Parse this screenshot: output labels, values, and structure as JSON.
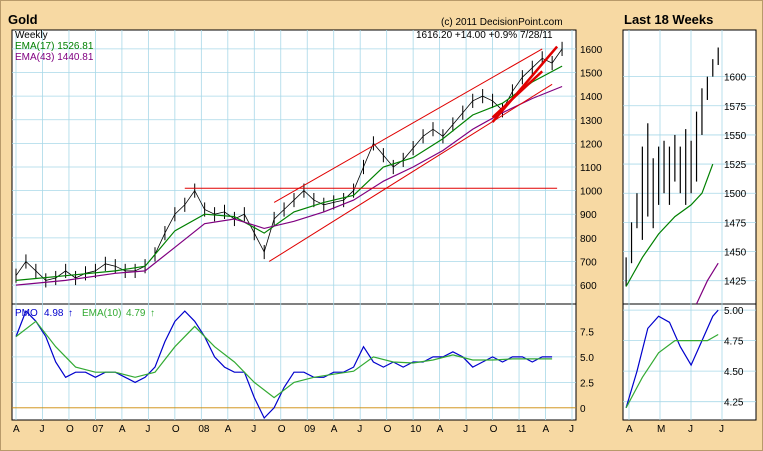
{
  "title_main": "Gold",
  "title_side": "Last 18 Weeks",
  "copyright": "(c) 2011 DecisionPoint.com",
  "quote": "1616.20  +14.00  +0.9%  7/28/11",
  "legend": {
    "period": "Weekly",
    "ema17": "EMA(17) 1526.81",
    "ema43": "EMA(43) 1440.81",
    "pmo_label": "PMO",
    "pmo_value": "4.98",
    "ema10_label": "EMA(10)",
    "ema10_value": "4.79"
  },
  "colors": {
    "price": "#000000",
    "ema17": "#008000",
    "ema43": "#800080",
    "pmo": "#0000cc",
    "pmo_ema": "#33aa33",
    "trend": "#e00000",
    "zero_line": "#cc8800",
    "grid": "#a8d8e8"
  },
  "chart_data": [
    {
      "type": "line",
      "name": "price-panel",
      "ylim": [
        520,
        1680
      ],
      "yticks": [
        600,
        700,
        800,
        900,
        1000,
        1100,
        1200,
        1300,
        1400,
        1500,
        1600
      ],
      "xticks": [
        "A",
        "J",
        "O",
        "07",
        "A",
        "J",
        "O",
        "08",
        "A",
        "J",
        "O",
        "09",
        "A",
        "J",
        "O",
        "10",
        "A",
        "J",
        "O",
        "11",
        "A",
        "J"
      ],
      "price_points": [
        [
          0,
          640
        ],
        [
          1,
          700
        ],
        [
          2,
          660
        ],
        [
          3,
          620
        ],
        [
          4,
          630
        ],
        [
          5,
          660
        ],
        [
          6,
          630
        ],
        [
          7,
          650
        ],
        [
          8,
          660
        ],
        [
          9,
          690
        ],
        [
          10,
          680
        ],
        [
          11,
          660
        ],
        [
          12,
          660
        ],
        [
          13,
          680
        ],
        [
          14,
          730
        ],
        [
          15,
          820
        ],
        [
          16,
          900
        ],
        [
          17,
          940
        ],
        [
          18,
          1000
        ],
        [
          19,
          920
        ],
        [
          20,
          900
        ],
        [
          21,
          910
        ],
        [
          22,
          880
        ],
        [
          23,
          900
        ],
        [
          24,
          820
        ],
        [
          25,
          740
        ],
        [
          26,
          880
        ],
        [
          27,
          920
        ],
        [
          28,
          960
        ],
        [
          29,
          1000
        ],
        [
          30,
          960
        ],
        [
          31,
          940
        ],
        [
          32,
          950
        ],
        [
          33,
          960
        ],
        [
          34,
          1000
        ],
        [
          35,
          1100
        ],
        [
          36,
          1200
        ],
        [
          37,
          1150
        ],
        [
          38,
          1100
        ],
        [
          39,
          1130
        ],
        [
          40,
          1180
        ],
        [
          41,
          1230
        ],
        [
          42,
          1260
        ],
        [
          43,
          1230
        ],
        [
          44,
          1280
        ],
        [
          45,
          1330
        ],
        [
          46,
          1380
        ],
        [
          47,
          1400
        ],
        [
          48,
          1380
        ],
        [
          49,
          1340
        ],
        [
          50,
          1420
        ],
        [
          51,
          1480
        ],
        [
          52,
          1520
        ],
        [
          53,
          1560
        ],
        [
          54,
          1540
        ],
        [
          55,
          1600
        ]
      ],
      "ema17_points": [
        [
          0,
          620
        ],
        [
          5,
          640
        ],
        [
          10,
          660
        ],
        [
          13,
          680
        ],
        [
          16,
          830
        ],
        [
          19,
          900
        ],
        [
          22,
          890
        ],
        [
          25,
          820
        ],
        [
          28,
          910
        ],
        [
          31,
          950
        ],
        [
          34,
          980
        ],
        [
          37,
          1100
        ],
        [
          40,
          1140
        ],
        [
          43,
          1220
        ],
        [
          46,
          1320
        ],
        [
          49,
          1370
        ],
        [
          52,
          1460
        ],
        [
          55,
          1527
        ]
      ],
      "ema43_points": [
        [
          0,
          600
        ],
        [
          5,
          620
        ],
        [
          10,
          650
        ],
        [
          13,
          660
        ],
        [
          16,
          760
        ],
        [
          19,
          860
        ],
        [
          22,
          880
        ],
        [
          25,
          840
        ],
        [
          28,
          870
        ],
        [
          31,
          910
        ],
        [
          34,
          960
        ],
        [
          37,
          1040
        ],
        [
          40,
          1100
        ],
        [
          43,
          1170
        ],
        [
          46,
          1260
        ],
        [
          49,
          1330
        ],
        [
          52,
          1390
        ],
        [
          55,
          1441
        ]
      ],
      "trendlines": [
        {
          "from": [
            17,
            1010
          ],
          "to": [
            54.5,
            1010
          ]
        },
        {
          "from": [
            26,
            950
          ],
          "to": [
            53,
            1600
          ]
        },
        {
          "from": [
            25.5,
            700
          ],
          "to": [
            54,
            1450
          ]
        },
        {
          "from": [
            48,
            1290
          ],
          "to": [
            54.5,
            1610
          ]
        },
        {
          "from": [
            48,
            1310
          ],
          "to": [
            53,
            1505
          ]
        }
      ]
    },
    {
      "type": "line",
      "name": "pmo-panel",
      "ylim": [
        -1.2,
        10.2
      ],
      "yticks": [
        "0",
        "2.5",
        "5.0",
        "7.5"
      ],
      "ytick_values": [
        0,
        2.5,
        5.0,
        7.5
      ],
      "pmo_points": [
        [
          0,
          7.0
        ],
        [
          1,
          9.5
        ],
        [
          2,
          8.5
        ],
        [
          3,
          7.0
        ],
        [
          4,
          4.5
        ],
        [
          5,
          3.0
        ],
        [
          6,
          3.5
        ],
        [
          7,
          3.5
        ],
        [
          8,
          3.0
        ],
        [
          9,
          3.5
        ],
        [
          10,
          3.5
        ],
        [
          11,
          3.0
        ],
        [
          12,
          2.5
        ],
        [
          13,
          3.0
        ],
        [
          14,
          4.0
        ],
        [
          15,
          6.5
        ],
        [
          16,
          8.5
        ],
        [
          17,
          9.5
        ],
        [
          18,
          8.5
        ],
        [
          19,
          7.0
        ],
        [
          20,
          5.0
        ],
        [
          21,
          4.0
        ],
        [
          22,
          3.5
        ],
        [
          23,
          3.5
        ],
        [
          24,
          1.0
        ],
        [
          25,
          -1.0
        ],
        [
          26,
          0.0
        ],
        [
          27,
          2.0
        ],
        [
          28,
          3.5
        ],
        [
          29,
          3.5
        ],
        [
          30,
          3.0
        ],
        [
          31,
          3.0
        ],
        [
          32,
          3.5
        ],
        [
          33,
          3.5
        ],
        [
          34,
          4.0
        ],
        [
          35,
          6.0
        ],
        [
          36,
          4.5
        ],
        [
          37,
          4.0
        ],
        [
          38,
          4.5
        ],
        [
          39,
          4.0
        ],
        [
          40,
          4.5
        ],
        [
          41,
          4.5
        ],
        [
          42,
          5.0
        ],
        [
          43,
          5.0
        ],
        [
          44,
          5.5
        ],
        [
          45,
          5.0
        ],
        [
          46,
          4.0
        ],
        [
          47,
          4.5
        ],
        [
          48,
          5.0
        ],
        [
          49,
          4.5
        ],
        [
          50,
          5.0
        ],
        [
          51,
          5.0
        ],
        [
          52,
          4.5
        ],
        [
          53,
          5.0
        ],
        [
          54,
          5.0
        ]
      ],
      "ema_points": [
        [
          0,
          7.0
        ],
        [
          2,
          8.5
        ],
        [
          4,
          6.0
        ],
        [
          6,
          4.0
        ],
        [
          8,
          3.5
        ],
        [
          10,
          3.5
        ],
        [
          12,
          3.0
        ],
        [
          14,
          3.5
        ],
        [
          16,
          6.0
        ],
        [
          18,
          8.0
        ],
        [
          20,
          6.0
        ],
        [
          22,
          4.5
        ],
        [
          24,
          2.5
        ],
        [
          26,
          1.0
        ],
        [
          28,
          2.5
        ],
        [
          30,
          3.0
        ],
        [
          32,
          3.3
        ],
        [
          34,
          3.6
        ],
        [
          36,
          5.0
        ],
        [
          38,
          4.5
        ],
        [
          40,
          4.4
        ],
        [
          42,
          4.7
        ],
        [
          44,
          5.2
        ],
        [
          46,
          4.7
        ],
        [
          48,
          4.7
        ],
        [
          50,
          4.8
        ],
        [
          52,
          4.8
        ],
        [
          54,
          4.8
        ]
      ]
    },
    {
      "type": "line",
      "name": "last18-price",
      "ylim": [
        1405,
        1640
      ],
      "yticks": [
        1425,
        1450,
        1475,
        1500,
        1525,
        1550,
        1575,
        1600
      ],
      "xticks": [
        "A",
        "M",
        "J",
        "J"
      ],
      "bars": [
        [
          0,
          1420,
          1445
        ],
        [
          1,
          1440,
          1475
        ],
        [
          2,
          1470,
          1500
        ],
        [
          3,
          1460,
          1540
        ],
        [
          4,
          1480,
          1560
        ],
        [
          5,
          1470,
          1530
        ],
        [
          6,
          1490,
          1540
        ],
        [
          7,
          1500,
          1545
        ],
        [
          8,
          1490,
          1540
        ],
        [
          9,
          1510,
          1550
        ],
        [
          10,
          1500,
          1540
        ],
        [
          11,
          1490,
          1555
        ],
        [
          12,
          1500,
          1545
        ],
        [
          13,
          1510,
          1570
        ],
        [
          14,
          1550,
          1590
        ],
        [
          15,
          1580,
          1600
        ],
        [
          16,
          1600,
          1615
        ],
        [
          17,
          1610,
          1625
        ]
      ],
      "ema17_line": [
        [
          0,
          1420
        ],
        [
          3,
          1445
        ],
        [
          6,
          1465
        ],
        [
          9,
          1480
        ],
        [
          12,
          1490
        ],
        [
          14,
          1500
        ],
        [
          16,
          1525
        ]
      ],
      "ema43_line": [
        [
          13,
          1405
        ],
        [
          15,
          1425
        ],
        [
          17,
          1440
        ]
      ]
    },
    {
      "type": "line",
      "name": "last18-pmo",
      "ylim": [
        4.1,
        5.05
      ],
      "yticks": [
        "4.25",
        "4.50",
        "4.75",
        "5.00"
      ],
      "ytick_values": [
        4.25,
        4.5,
        4.75,
        5.0
      ],
      "pmo_line": [
        [
          0,
          4.2
        ],
        [
          2,
          4.5
        ],
        [
          4,
          4.85
        ],
        [
          6,
          4.95
        ],
        [
          8,
          4.9
        ],
        [
          10,
          4.7
        ],
        [
          12,
          4.55
        ],
        [
          14,
          4.75
        ],
        [
          16,
          4.95
        ],
        [
          17,
          5.0
        ]
      ],
      "ema_line": [
        [
          0,
          4.2
        ],
        [
          3,
          4.45
        ],
        [
          6,
          4.65
        ],
        [
          9,
          4.75
        ],
        [
          12,
          4.75
        ],
        [
          15,
          4.75
        ],
        [
          17,
          4.8
        ]
      ]
    }
  ]
}
